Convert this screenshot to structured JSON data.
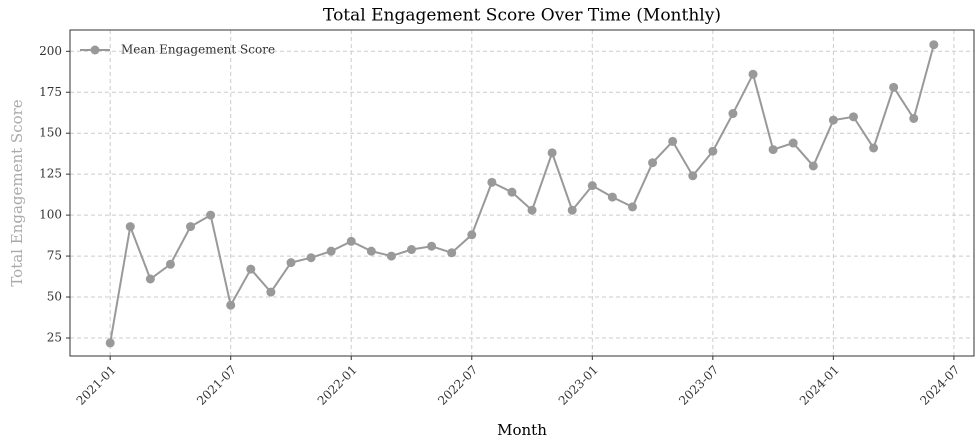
{
  "chart_data": {
    "type": "line",
    "title": "Total Engagement Score Over Time (Monthly)",
    "xlabel": "Month",
    "ylabel": "Total Engagement Score",
    "x": [
      "2021-01",
      "2021-02",
      "2021-03",
      "2021-04",
      "2021-05",
      "2021-06",
      "2021-07",
      "2021-08",
      "2021-09",
      "2021-10",
      "2021-11",
      "2021-12",
      "2022-01",
      "2022-02",
      "2022-03",
      "2022-04",
      "2022-05",
      "2022-06",
      "2022-07",
      "2022-08",
      "2022-09",
      "2022-10",
      "2022-11",
      "2022-12",
      "2023-01",
      "2023-02",
      "2023-03",
      "2023-04",
      "2023-05",
      "2023-06",
      "2023-07",
      "2023-08",
      "2023-09",
      "2023-10",
      "2023-11",
      "2023-12",
      "2024-01",
      "2024-02",
      "2024-03",
      "2024-04",
      "2024-05",
      "2024-06"
    ],
    "series": [
      {
        "name": "Mean Engagement Score",
        "color": "#999999",
        "values": [
          22,
          93,
          61,
          70,
          93,
          100,
          45,
          67,
          53,
          71,
          74,
          78,
          84,
          78,
          75,
          79,
          81,
          77,
          88,
          120,
          114,
          103,
          138,
          103,
          118,
          111,
          105,
          132,
          145,
          124,
          139,
          162,
          186,
          140,
          144,
          130,
          158,
          160,
          141,
          178,
          159,
          204
        ]
      }
    ],
    "xlim": [
      "2020-11",
      "2024-08"
    ],
    "xticks": [
      "2021-01",
      "2021-07",
      "2022-01",
      "2022-07",
      "2023-01",
      "2023-07",
      "2024-01",
      "2024-07"
    ],
    "ylim": [
      14,
      213
    ],
    "yticks": [
      25,
      50,
      75,
      100,
      125,
      150,
      175,
      200
    ],
    "grid": true,
    "legend": "upper left"
  }
}
